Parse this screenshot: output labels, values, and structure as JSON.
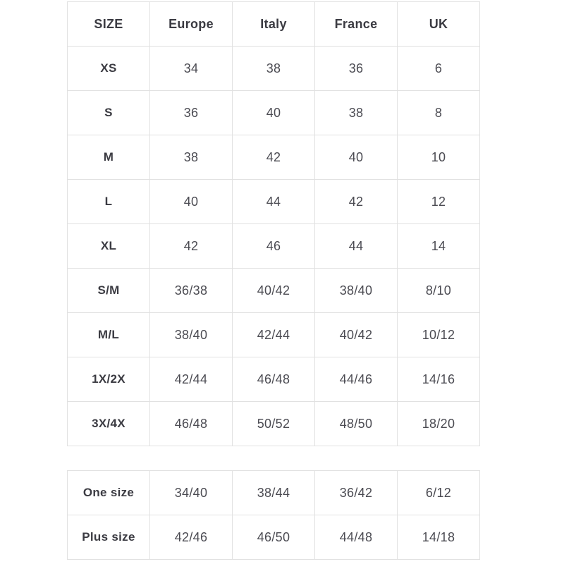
{
  "colors": {
    "background": "#ffffff",
    "border": "#e1e1e1",
    "header_text": "#3b3b42",
    "cell_text": "#4b4b52"
  },
  "size_chart": {
    "headers": [
      "SIZE",
      "Europe",
      "Italy",
      "France",
      "UK"
    ],
    "rows": [
      [
        "XS",
        "34",
        "38",
        "36",
        "6"
      ],
      [
        "S",
        "36",
        "40",
        "38",
        "8"
      ],
      [
        "M",
        "38",
        "42",
        "40",
        "10"
      ],
      [
        "L",
        "40",
        "44",
        "42",
        "12"
      ],
      [
        "XL",
        "42",
        "46",
        "44",
        "14"
      ],
      [
        "S/M",
        "36/38",
        "40/42",
        "38/40",
        "8/10"
      ],
      [
        "M/L",
        "38/40",
        "42/44",
        "40/42",
        "10/12"
      ],
      [
        "1X/2X",
        "42/44",
        "46/48",
        "44/46",
        "14/16"
      ],
      [
        "3X/4X",
        "46/48",
        "50/52",
        "48/50",
        "18/20"
      ]
    ]
  },
  "special_sizes": {
    "rows": [
      [
        "One size",
        "34/40",
        "38/44",
        "36/42",
        "6/12"
      ],
      [
        "Plus size",
        "42/46",
        "46/50",
        "44/48",
        "14/18"
      ]
    ]
  }
}
